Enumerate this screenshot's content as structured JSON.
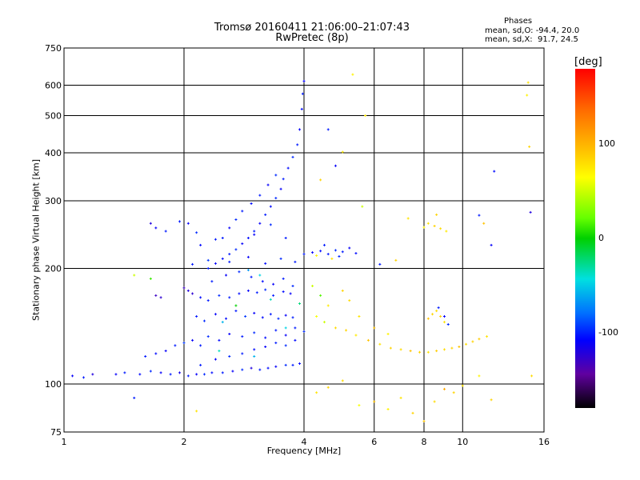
{
  "stats": {
    "phases_title": "Phases",
    "o_line": "mean, sd,O: -94.4, 20.0",
    "x_line": "mean, sd,X:  91.7, 24.5"
  },
  "colorbar": {
    "unit": "[deg]",
    "ticks": [
      {
        "label": "100",
        "value": 100
      },
      {
        "label": "0",
        "value": 0
      },
      {
        "label": "-100",
        "value": -100
      }
    ],
    "range": [
      -180,
      180
    ],
    "colors": [
      "#000000",
      "#6000a0",
      "#0000ff",
      "#0070ff",
      "#00e0e0",
      "#00d000",
      "#66ff00",
      "#ffff00",
      "#ffc800",
      "#ff6a00",
      "#ff0000"
    ]
  },
  "chart_data": {
    "type": "scatter",
    "title": "Tromsø 20160411 21:06:00–21:07:43",
    "subtitle": "RwPretec (8p)",
    "xlabel": "Frequency [MHz]",
    "ylabel": "Stationary phase Virtual Height [km]",
    "x_scale": "log",
    "y_scale": "log",
    "xlim": [
      1,
      16
    ],
    "ylim": [
      75,
      750
    ],
    "x_ticks": [
      1,
      2,
      4,
      6,
      8,
      10,
      16
    ],
    "x_tick_labels": [
      "1",
      "2",
      "4",
      "6",
      "8",
      "10",
      "16"
    ],
    "y_ticks": [
      75,
      100,
      200,
      300,
      400,
      500,
      600,
      750
    ],
    "y_tick_labels": [
      "75",
      "100",
      "200",
      "300",
      "400",
      "500",
      "600",
      "750"
    ],
    "grid": true,
    "points": [
      [
        1.05,
        105,
        -110
      ],
      [
        1.12,
        104,
        -100
      ],
      [
        1.18,
        106,
        -120
      ],
      [
        1.35,
        106,
        -110
      ],
      [
        1.42,
        107,
        -100
      ],
      [
        1.55,
        106,
        -105
      ],
      [
        1.65,
        108,
        -95
      ],
      [
        1.75,
        107,
        -110
      ],
      [
        1.85,
        106,
        -100
      ],
      [
        1.95,
        107,
        -115
      ],
      [
        2.05,
        105,
        -100
      ],
      [
        2.15,
        106,
        -110
      ],
      [
        2.25,
        106,
        -95
      ],
      [
        2.35,
        107,
        -105
      ],
      [
        2.5,
        107,
        -100
      ],
      [
        2.65,
        108,
        -110
      ],
      [
        2.8,
        109,
        -95
      ],
      [
        2.95,
        110,
        -120
      ],
      [
        3.1,
        109,
        -100
      ],
      [
        3.25,
        110,
        -105
      ],
      [
        3.4,
        111,
        -110
      ],
      [
        3.6,
        112,
        -95
      ],
      [
        3.75,
        112,
        -100
      ],
      [
        3.9,
        113,
        -105
      ],
      [
        1.6,
        118,
        -100
      ],
      [
        1.7,
        120,
        -105
      ],
      [
        1.8,
        122,
        -110
      ],
      [
        1.9,
        126,
        -100
      ],
      [
        2.0,
        128,
        -90
      ],
      [
        2.1,
        130,
        -110
      ],
      [
        2.2,
        126,
        -100
      ],
      [
        2.3,
        133,
        -95
      ],
      [
        2.45,
        130,
        -105
      ],
      [
        2.6,
        135,
        -110
      ],
      [
        2.8,
        133,
        -100
      ],
      [
        3.0,
        136,
        -95
      ],
      [
        3.2,
        132,
        -105
      ],
      [
        3.4,
        138,
        -100
      ],
      [
        3.6,
        134,
        -110
      ],
      [
        3.8,
        140,
        -100
      ],
      [
        4.0,
        137,
        -95
      ],
      [
        2.0,
        178,
        -130
      ],
      [
        2.05,
        175,
        -120
      ],
      [
        2.1,
        172,
        -125
      ],
      [
        2.2,
        168,
        -105
      ],
      [
        2.3,
        165,
        -100
      ],
      [
        2.45,
        170,
        -95
      ],
      [
        2.6,
        168,
        -100
      ],
      [
        2.75,
        172,
        -105
      ],
      [
        2.9,
        175,
        -110
      ],
      [
        3.05,
        173,
        -100
      ],
      [
        3.2,
        176,
        -95
      ],
      [
        3.35,
        170,
        -100
      ],
      [
        3.55,
        174,
        -105
      ],
      [
        3.7,
        172,
        -110
      ],
      [
        2.15,
        150,
        -100
      ],
      [
        2.25,
        146,
        -95
      ],
      [
        2.4,
        152,
        -110
      ],
      [
        2.55,
        148,
        -105
      ],
      [
        2.7,
        155,
        -100
      ],
      [
        2.85,
        150,
        -90
      ],
      [
        3.0,
        153,
        -110
      ],
      [
        3.15,
        149,
        -105
      ],
      [
        3.3,
        152,
        -100
      ],
      [
        3.45,
        148,
        -95
      ],
      [
        3.6,
        151,
        -110
      ],
      [
        3.75,
        149,
        -100
      ],
      [
        2.3,
        200,
        -100
      ],
      [
        2.4,
        206,
        -110
      ],
      [
        2.5,
        212,
        -105
      ],
      [
        2.6,
        218,
        -100
      ],
      [
        2.7,
        224,
        -95
      ],
      [
        2.8,
        232,
        -110
      ],
      [
        2.9,
        240,
        -105
      ],
      [
        3.0,
        250,
        -100
      ],
      [
        3.1,
        262,
        -110
      ],
      [
        3.2,
        276,
        -100
      ],
      [
        3.3,
        290,
        -105
      ],
      [
        3.4,
        305,
        -95
      ],
      [
        3.5,
        322,
        -110
      ],
      [
        3.55,
        342,
        -100
      ],
      [
        3.65,
        365,
        -105
      ],
      [
        3.75,
        390,
        -95
      ],
      [
        3.85,
        420,
        -100
      ],
      [
        3.9,
        460,
        -110
      ],
      [
        3.95,
        520,
        -105
      ],
      [
        3.97,
        570,
        -100
      ],
      [
        4.0,
        615,
        -110
      ],
      [
        2.5,
        240,
        -100
      ],
      [
        2.6,
        255,
        -110
      ],
      [
        2.7,
        268,
        -95
      ],
      [
        2.8,
        282,
        -100
      ],
      [
        2.95,
        295,
        -105
      ],
      [
        3.1,
        310,
        -100
      ],
      [
        3.25,
        330,
        -110
      ],
      [
        3.4,
        350,
        -95
      ],
      [
        1.65,
        262,
        -120
      ],
      [
        1.7,
        255,
        -110
      ],
      [
        1.8,
        250,
        -100
      ],
      [
        1.7,
        170,
        -130
      ],
      [
        1.75,
        168,
        -125
      ],
      [
        1.95,
        265,
        -100
      ],
      [
        2.05,
        262,
        -110
      ],
      [
        2.15,
        248,
        -95
      ],
      [
        1.5,
        192,
        60
      ],
      [
        1.65,
        188,
        20
      ],
      [
        1.5,
        92,
        -100
      ],
      [
        2.15,
        85,
        90
      ],
      [
        4.0,
        218,
        -100
      ],
      [
        4.2,
        220,
        -110
      ],
      [
        4.4,
        222,
        -105
      ],
      [
        4.6,
        218,
        -100
      ],
      [
        4.8,
        223,
        -95
      ],
      [
        5.0,
        221,
        -100
      ],
      [
        5.2,
        226,
        -110
      ],
      [
        5.4,
        219,
        -105
      ],
      [
        4.5,
        230,
        -100
      ],
      [
        4.9,
        215,
        -95
      ],
      [
        4.3,
        216,
        80
      ],
      [
        4.7,
        212,
        90
      ],
      [
        4.3,
        150,
        70
      ],
      [
        4.5,
        145,
        60
      ],
      [
        4.8,
        140,
        95
      ],
      [
        5.1,
        138,
        100
      ],
      [
        5.4,
        134,
        85
      ],
      [
        5.8,
        130,
        110
      ],
      [
        6.2,
        127,
        90
      ],
      [
        6.6,
        124,
        100
      ],
      [
        7.0,
        123,
        95
      ],
      [
        7.4,
        122,
        110
      ],
      [
        7.8,
        121,
        100
      ],
      [
        8.2,
        121,
        90
      ],
      [
        8.6,
        122,
        105
      ],
      [
        9.0,
        123,
        95
      ],
      [
        9.4,
        124,
        100
      ],
      [
        9.8,
        125,
        110
      ],
      [
        10.2,
        127,
        95
      ],
      [
        10.6,
        129,
        100
      ],
      [
        11.0,
        131,
        105
      ],
      [
        11.5,
        133,
        90
      ],
      [
        4.2,
        180,
        60
      ],
      [
        4.4,
        170,
        30
      ],
      [
        4.6,
        160,
        85
      ],
      [
        5.0,
        175,
        100
      ],
      [
        5.2,
        165,
        95
      ],
      [
        5.5,
        150,
        90
      ],
      [
        6.0,
        140,
        110
      ],
      [
        6.5,
        135,
        80
      ],
      [
        4.3,
        95,
        90
      ],
      [
        4.6,
        98,
        100
      ],
      [
        5.0,
        102,
        95
      ],
      [
        5.5,
        88,
        70
      ],
      [
        6.0,
        90,
        110
      ],
      [
        6.5,
        86,
        80
      ],
      [
        7.0,
        92,
        90
      ],
      [
        7.5,
        84,
        100
      ],
      [
        8.0,
        80,
        110
      ],
      [
        8.5,
        90,
        95
      ],
      [
        9.0,
        97,
        120
      ],
      [
        9.5,
        95,
        100
      ],
      [
        10.0,
        99,
        90
      ],
      [
        11.0,
        105,
        80
      ],
      [
        11.8,
        91,
        100
      ],
      [
        8.2,
        148,
        110
      ],
      [
        8.4,
        152,
        100
      ],
      [
        8.6,
        155,
        95
      ],
      [
        8.8,
        150,
        105
      ],
      [
        9.0,
        145,
        90
      ],
      [
        8.7,
        158,
        -100
      ],
      [
        9.0,
        150,
        -110
      ],
      [
        9.2,
        143,
        -95
      ],
      [
        8.0,
        256,
        80
      ],
      [
        8.2,
        262,
        90
      ],
      [
        8.5,
        258,
        100
      ],
      [
        8.8,
        254,
        95
      ],
      [
        9.1,
        250,
        85
      ],
      [
        7.3,
        270,
        90
      ],
      [
        8.6,
        276,
        100
      ],
      [
        11.0,
        275,
        -100
      ],
      [
        11.3,
        262,
        110
      ],
      [
        11.8,
        230,
        -110
      ],
      [
        12.0,
        358,
        -105
      ],
      [
        14.5,
        565,
        80
      ],
      [
        14.6,
        610,
        90
      ],
      [
        14.7,
        415,
        100
      ],
      [
        14.8,
        280,
        -120
      ],
      [
        14.9,
        105,
        95
      ],
      [
        5.3,
        640,
        80
      ],
      [
        5.7,
        500,
        90
      ],
      [
        5.0,
        402,
        85
      ],
      [
        4.6,
        460,
        -100
      ],
      [
        4.4,
        340,
        100
      ],
      [
        4.8,
        370,
        -110
      ],
      [
        5.6,
        290,
        60
      ],
      [
        6.2,
        205,
        -100
      ],
      [
        6.8,
        210,
        100
      ],
      [
        2.2,
        112,
        -100
      ],
      [
        2.4,
        116,
        -110
      ],
      [
        2.6,
        118,
        -95
      ],
      [
        2.8,
        120,
        -100
      ],
      [
        3.0,
        123,
        -105
      ],
      [
        3.2,
        125,
        -110
      ],
      [
        3.4,
        128,
        -100
      ],
      [
        3.6,
        126,
        -95
      ],
      [
        3.8,
        130,
        -105
      ],
      [
        2.35,
        185,
        -100
      ],
      [
        2.55,
        192,
        -110
      ],
      [
        2.75,
        196,
        -95
      ],
      [
        2.95,
        190,
        -100
      ],
      [
        3.15,
        185,
        -105
      ],
      [
        3.35,
        182,
        -110
      ],
      [
        3.55,
        188,
        -100
      ],
      [
        3.75,
        180,
        -95
      ],
      [
        2.1,
        205,
        -100
      ],
      [
        2.3,
        210,
        -90
      ],
      [
        2.6,
        208,
        -100
      ],
      [
        2.9,
        214,
        -110
      ],
      [
        3.2,
        206,
        -105
      ],
      [
        3.5,
        212,
        -95
      ],
      [
        3.8,
        208,
        -100
      ],
      [
        2.2,
        230,
        -105
      ],
      [
        2.4,
        238,
        -100
      ],
      [
        3.0,
        245,
        -110
      ],
      [
        3.3,
        260,
        -95
      ],
      [
        3.6,
        240,
        -100
      ],
      [
        2.9,
        198,
        -60
      ],
      [
        3.1,
        192,
        -40
      ],
      [
        3.3,
        166,
        -30
      ],
      [
        2.7,
        160,
        0
      ],
      [
        2.5,
        145,
        -50
      ],
      [
        3.6,
        140,
        -40
      ],
      [
        3.9,
        162,
        -20
      ],
      [
        3.0,
        118,
        -50
      ],
      [
        2.45,
        122,
        -30
      ]
    ]
  }
}
